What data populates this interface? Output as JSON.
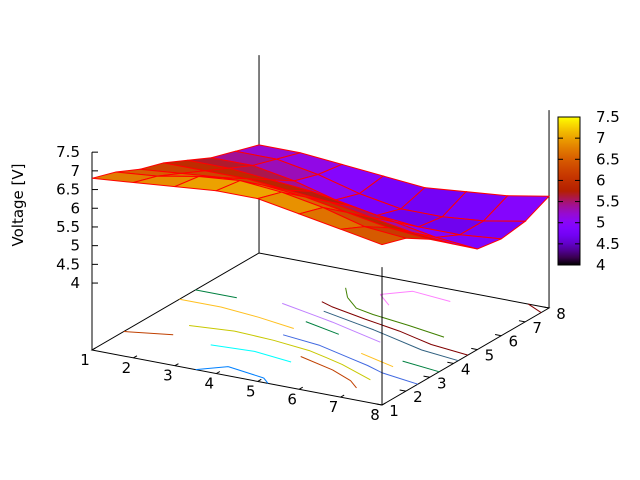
{
  "chart_data": {
    "type": "surface",
    "zlabel": "Voltage [V]",
    "x": [
      1,
      2,
      3,
      4,
      5,
      6,
      7,
      8
    ],
    "y": [
      1,
      2,
      3,
      4,
      5,
      6,
      7,
      8
    ],
    "x_ticks": [
      "1",
      "2",
      "3",
      "4",
      "5",
      "6",
      "7",
      "8"
    ],
    "y_ticks": [
      "1",
      "2",
      "3",
      "4",
      "5",
      "6",
      "7",
      "8"
    ],
    "z_ticks": [
      "4",
      "4.5",
      "5",
      "5.5",
      "6",
      "6.5",
      "7",
      "7.5"
    ],
    "z_tick_values": [
      4,
      4.5,
      5,
      5.5,
      6,
      6.5,
      7,
      7.5
    ],
    "cbrange": [
      4,
      7.5
    ],
    "cb_ticks": [
      "4",
      "4.5",
      "5",
      "5.5",
      "6",
      "6.5",
      "7",
      "7.5"
    ],
    "cb_tick_values": [
      4,
      4.5,
      5,
      5.5,
      6,
      6.5,
      7,
      7.5
    ],
    "z_rows_by_y": [
      [
        6.8,
        6.9,
        7.0,
        7.1,
        7.1,
        6.9,
        6.7,
        6.5
      ],
      [
        6.6,
        6.7,
        6.9,
        7.0,
        6.9,
        6.7,
        6.4,
        6.3
      ],
      [
        6.3,
        6.4,
        6.5,
        6.5,
        6.4,
        6.2,
        6.0,
        5.9
      ],
      [
        6.1,
        6.1,
        6.1,
        6.0,
        5.9,
        5.7,
        5.5,
        5.4
      ],
      [
        5.8,
        5.8,
        5.7,
        5.6,
        5.4,
        5.2,
        5.0,
        4.9
      ],
      [
        5.5,
        5.5,
        5.3,
        5.0,
        4.8,
        4.7,
        4.7,
        4.8
      ],
      [
        5.3,
        5.3,
        5.1,
        4.8,
        4.6,
        4.6,
        4.7,
        4.9
      ],
      [
        5.1,
        5.1,
        5.0,
        4.9,
        4.8,
        4.9,
        5.0,
        5.2
      ]
    ],
    "mesh_color": "#ff0000",
    "palette": "rgbformulae 7,5,15",
    "contour_levels": [
      4.7,
      4.9,
      5.1,
      5.3,
      5.5,
      5.7,
      5.9,
      6.1,
      6.3,
      6.5,
      6.7,
      6.9,
      7.05
    ],
    "contour_colors": [
      "#ff80ff",
      "#408000",
      "#800000",
      "#306080",
      "#c080ff",
      "#008040",
      "#ffc020",
      "#4169e1",
      "#c8c800",
      "#c04000",
      "#00ffff",
      "#9400d3",
      "#0080ff"
    ],
    "grid": false,
    "colorbox": "right"
  }
}
